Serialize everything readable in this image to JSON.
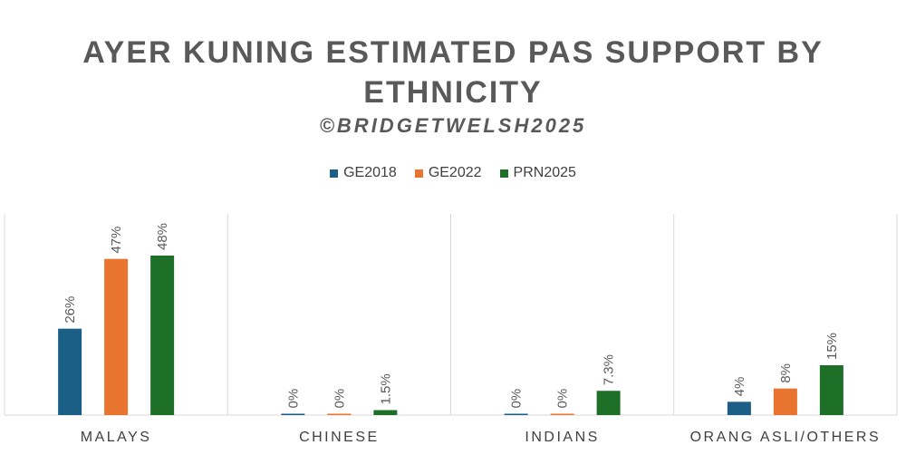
{
  "title_line1": "AYER KUNING ESTIMATED PAS SUPPORT BY",
  "title_line2": "ETHNICITY",
  "subtitle": "©BRIDGETWELSH2025",
  "colors": {
    "GE2018": "#1b5e86",
    "GE2022": "#e8742f",
    "PRN2025": "#1e6f28",
    "grid": "#d9d9d9"
  },
  "chart_data": {
    "type": "bar",
    "title": "AYER KUNING ESTIMATED PAS SUPPORT BY ETHNICITY",
    "subtitle": "©BRIDGETWELSH2025",
    "categories": [
      "MALAYS",
      "CHINESE",
      "INDIANS",
      "ORANG ASLI/OTHERS"
    ],
    "series": [
      {
        "name": "GE2018",
        "values": [
          26,
          0,
          0,
          4
        ],
        "labels": [
          "26%",
          "0%",
          "0%",
          "4%"
        ]
      },
      {
        "name": "GE2022",
        "values": [
          47,
          0,
          0,
          8
        ],
        "labels": [
          "47%",
          "0%",
          "0%",
          "8%"
        ]
      },
      {
        "name": "PRN2025",
        "values": [
          48,
          1.5,
          7.3,
          15
        ],
        "labels": [
          "48%",
          "1.5%",
          "7.3%",
          "15%"
        ]
      }
    ],
    "ylim": [
      0,
      60
    ],
    "legend_position": "top",
    "grid": false
  }
}
